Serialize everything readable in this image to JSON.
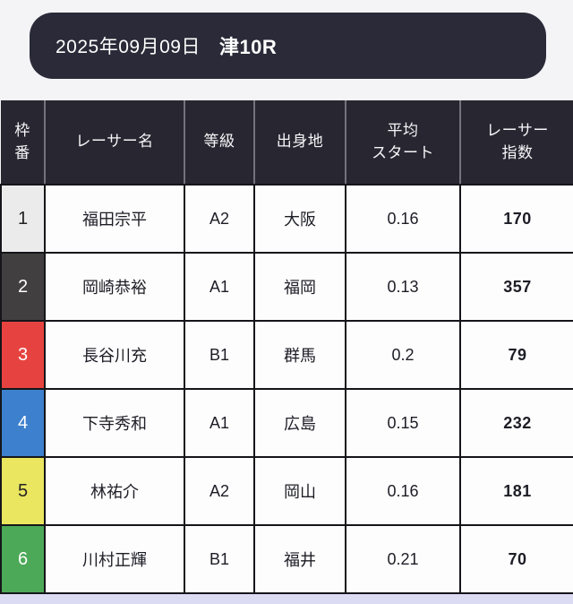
{
  "page": {
    "background": "#f4f4f7",
    "bottom_strip_color": "#dbdbf3"
  },
  "header": {
    "date": "2025年09月09日",
    "race": "津10R",
    "background": "#2b2a38",
    "text_color": "#ffffff"
  },
  "table": {
    "header_background": "#272631",
    "header_text_color": "#f6f6f8",
    "border_color": "#15151a",
    "header_separator_color": "#74737d",
    "columns": [
      {
        "key": "waku",
        "label": "枠\n番"
      },
      {
        "key": "name",
        "label": "レーサー名"
      },
      {
        "key": "grade",
        "label": "等級"
      },
      {
        "key": "origin",
        "label": "出身地"
      },
      {
        "key": "avg_start",
        "label": "平均\nスタート"
      },
      {
        "key": "index",
        "label": "レーサー\n指数"
      }
    ],
    "rows": [
      {
        "waku": "1",
        "waku_bg": "#ebebeb",
        "waku_text": "#222222",
        "name": "福田宗平",
        "grade": "A2",
        "origin": "大阪",
        "avg_start": "0.16",
        "index": "170"
      },
      {
        "waku": "2",
        "waku_bg": "#413f40",
        "waku_text": "#ffffff",
        "name": "岡崎恭裕",
        "grade": "A1",
        "origin": "福岡",
        "avg_start": "0.13",
        "index": "357"
      },
      {
        "waku": "3",
        "waku_bg": "#e64340",
        "waku_text": "#ffffff",
        "name": "長谷川充",
        "grade": "B1",
        "origin": "群馬",
        "avg_start": "0.2",
        "index": "79"
      },
      {
        "waku": "4",
        "waku_bg": "#3d80cd",
        "waku_text": "#ffffff",
        "name": "下寺秀和",
        "grade": "A1",
        "origin": "広島",
        "avg_start": "0.15",
        "index": "232"
      },
      {
        "waku": "5",
        "waku_bg": "#eae660",
        "waku_text": "#222222",
        "name": "林祐介",
        "grade": "A2",
        "origin": "岡山",
        "avg_start": "0.16",
        "index": "181"
      },
      {
        "waku": "6",
        "waku_bg": "#4ca957",
        "waku_text": "#ffffff",
        "name": "川村正輝",
        "grade": "B1",
        "origin": "福井",
        "avg_start": "0.21",
        "index": "70"
      }
    ]
  }
}
